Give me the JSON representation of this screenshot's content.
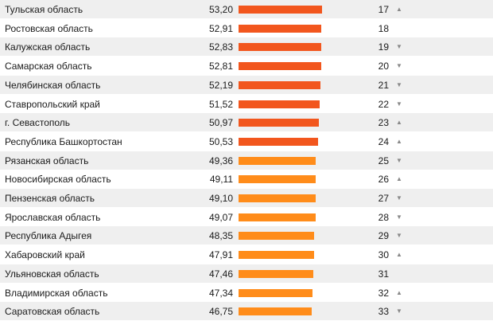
{
  "colors": {
    "bar_high": "#f2561d",
    "bar_low": "#ff8c1a",
    "row_alt": "#efefef",
    "arrow": "#888888"
  },
  "bar_scale_max": 53.2,
  "rows": [
    {
      "name": "Тульская область",
      "value": "53,20",
      "rank": "17",
      "trend": "up"
    },
    {
      "name": "Ростовская область",
      "value": "52,91",
      "rank": "18",
      "trend": "none"
    },
    {
      "name": "Калужская область",
      "value": "52,83",
      "rank": "19",
      "trend": "down"
    },
    {
      "name": "Самарская область",
      "value": "52,81",
      "rank": "20",
      "trend": "down"
    },
    {
      "name": "Челябинская область",
      "value": "52,19",
      "rank": "21",
      "trend": "down"
    },
    {
      "name": "Ставропольский край",
      "value": "51,52",
      "rank": "22",
      "trend": "down"
    },
    {
      "name": "г. Севастополь",
      "value": "50,97",
      "rank": "23",
      "trend": "up"
    },
    {
      "name": "Республика Башкортостан",
      "value": "50,53",
      "rank": "24",
      "trend": "up"
    },
    {
      "name": "Рязанская область",
      "value": "49,36",
      "rank": "25",
      "trend": "down"
    },
    {
      "name": "Новосибирская область",
      "value": "49,11",
      "rank": "26",
      "trend": "up"
    },
    {
      "name": "Пензенская область",
      "value": "49,10",
      "rank": "27",
      "trend": "down"
    },
    {
      "name": "Ярославская область",
      "value": "49,07",
      "rank": "28",
      "trend": "down"
    },
    {
      "name": "Республика Адыгея",
      "value": "48,35",
      "rank": "29",
      "trend": "down"
    },
    {
      "name": "Хабаровский край",
      "value": "47,91",
      "rank": "30",
      "trend": "up"
    },
    {
      "name": "Ульяновская область",
      "value": "47,46",
      "rank": "31",
      "trend": "none"
    },
    {
      "name": "Владимирская область",
      "value": "47,34",
      "rank": "32",
      "trend": "up"
    },
    {
      "name": "Саратовская область",
      "value": "46,75",
      "rank": "33",
      "trend": "down"
    }
  ]
}
